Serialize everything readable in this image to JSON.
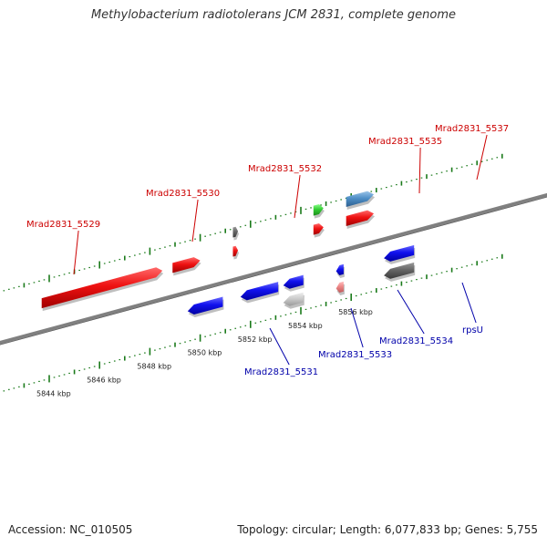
{
  "title": "Methylobacterium radiotolerans JCM 2831, complete genome",
  "footer": {
    "accession": "Accession: NC_010505",
    "topology": "Topology: circular",
    "length": "Length: 6,077,833 bp",
    "genes": "Genes: 5,755"
  },
  "colors": {
    "forward_label": "#cc0000",
    "reverse_label": "#0000aa",
    "tick_color": "#1a7a1a",
    "backbone": "#808080"
  },
  "scale": {
    "unit": "kbp",
    "ticks": [
      {
        "pos_kbp": 5844,
        "label": "5844 kbp"
      },
      {
        "pos_kbp": 5846,
        "label": "5846 kbp"
      },
      {
        "pos_kbp": 5848,
        "label": "5848 kbp"
      },
      {
        "pos_kbp": 5850,
        "label": "5850 kbp"
      },
      {
        "pos_kbp": 5852,
        "label": "5852 kbp"
      },
      {
        "pos_kbp": 5854,
        "label": "5854 kbp"
      },
      {
        "pos_kbp": 5856,
        "label": "5856 kbp"
      }
    ]
  },
  "genes": [
    {
      "label": "Mrad2831_5529",
      "strand": "+",
      "color": "red",
      "start_kbp": 5843.7,
      "end_kbp": 5848.5
    },
    {
      "label": "Mrad2831_5530",
      "strand": "+",
      "color": "red",
      "start_kbp": 5848.9,
      "end_kbp": 5850.0
    },
    {
      "label": "Mrad2831_5531",
      "strand": "-",
      "color": "blue",
      "start_kbp": 5849.5,
      "end_kbp": 5850.9
    },
    {
      "label": "Mrad2831_5532",
      "strand": "+",
      "color": "red",
      "start_kbp": 5851.3,
      "end_kbp": 5851.5
    },
    {
      "label": "",
      "strand": "+",
      "color": "darkgray",
      "start_kbp": 5851.3,
      "end_kbp": 5851.5
    },
    {
      "label": "Mrad2831_5533",
      "strand": "-",
      "color": "blue",
      "start_kbp": 5851.6,
      "end_kbp": 5853.1
    },
    {
      "label": "Mrad2831_5534",
      "strand": "-",
      "color": "blue",
      "start_kbp": 5853.3,
      "end_kbp": 5854.1
    },
    {
      "label": "",
      "strand": "-",
      "color": "lightgray",
      "start_kbp": 5853.3,
      "end_kbp": 5854.1
    },
    {
      "label": "Mrad2831_5535",
      "strand": "+",
      "color": "red",
      "start_kbp": 5854.5,
      "end_kbp": 5854.9
    },
    {
      "label": "",
      "strand": "+",
      "color": "green",
      "start_kbp": 5854.5,
      "end_kbp": 5854.9
    },
    {
      "label": "rpsU",
      "strand": "-",
      "color": "blue",
      "start_kbp": 5855.4,
      "end_kbp": 5855.7
    },
    {
      "label": "",
      "strand": "-",
      "color": "pink",
      "start_kbp": 5855.4,
      "end_kbp": 5855.7
    },
    {
      "label": "Mrad2831_5537",
      "strand": "+",
      "color": "red",
      "start_kbp": 5855.8,
      "end_kbp": 5856.9
    },
    {
      "label": "",
      "strand": "+",
      "color": "steelblue",
      "start_kbp": 5855.8,
      "end_kbp": 5856.9
    },
    {
      "label": "",
      "strand": "-",
      "color": "blue",
      "start_kbp": 5857.3,
      "end_kbp": 5858.5
    },
    {
      "label": "",
      "strand": "-",
      "color": "darkgray",
      "start_kbp": 5857.3,
      "end_kbp": 5858.5
    }
  ]
}
